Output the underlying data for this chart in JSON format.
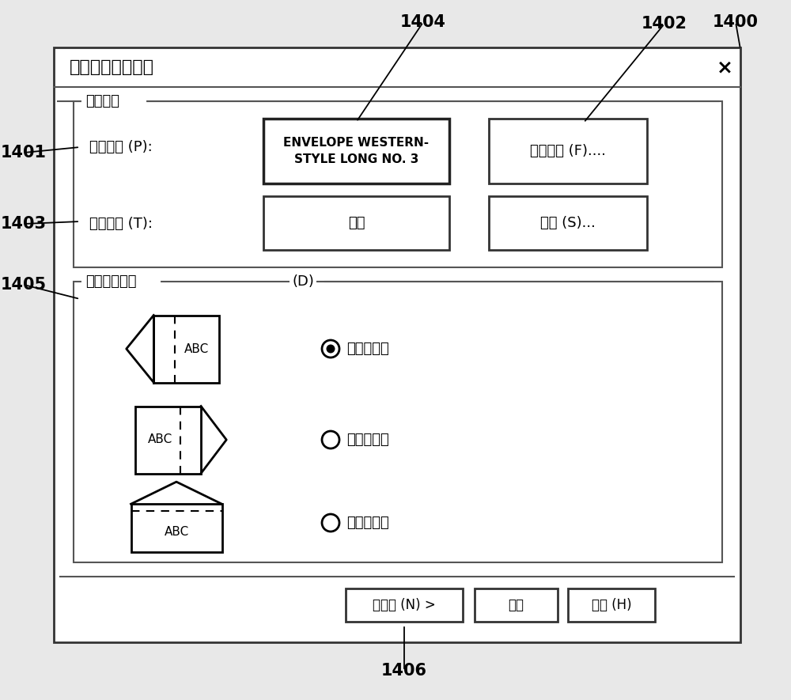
{
  "bg_color": "#ffffff",
  "dialog_title": "信封打印详细信息",
  "close_x": "×",
  "sheet_settings_label": "片材设置",
  "sheet_size_label": "片材尺寸 (P):",
  "sheet_size_value": "ENVELOPE WESTERN-\nSTYLE LONG NO. 3",
  "cover_settings_btn": "封盖设置 (F)....",
  "sheet_type_label": "片材类型 (T):",
  "sheet_type_value": "自动",
  "settings_btn": "设置 (S)...",
  "print_dir_label": "打印数据方向",
  "print_dir_d": "(D)",
  "option1_label": "封盖在左侧",
  "option2_label": "封盖在右侧",
  "option3_label": "封盖在上部",
  "btn_next": "下一步 (N) >",
  "btn_cancel": "取消",
  "btn_help": "帮助 (H)",
  "label_1400": "1400",
  "label_1401": "1401",
  "label_1402": "1402",
  "label_1403": "1403",
  "label_1404": "1404",
  "label_1405": "1405",
  "label_1406": "1406"
}
